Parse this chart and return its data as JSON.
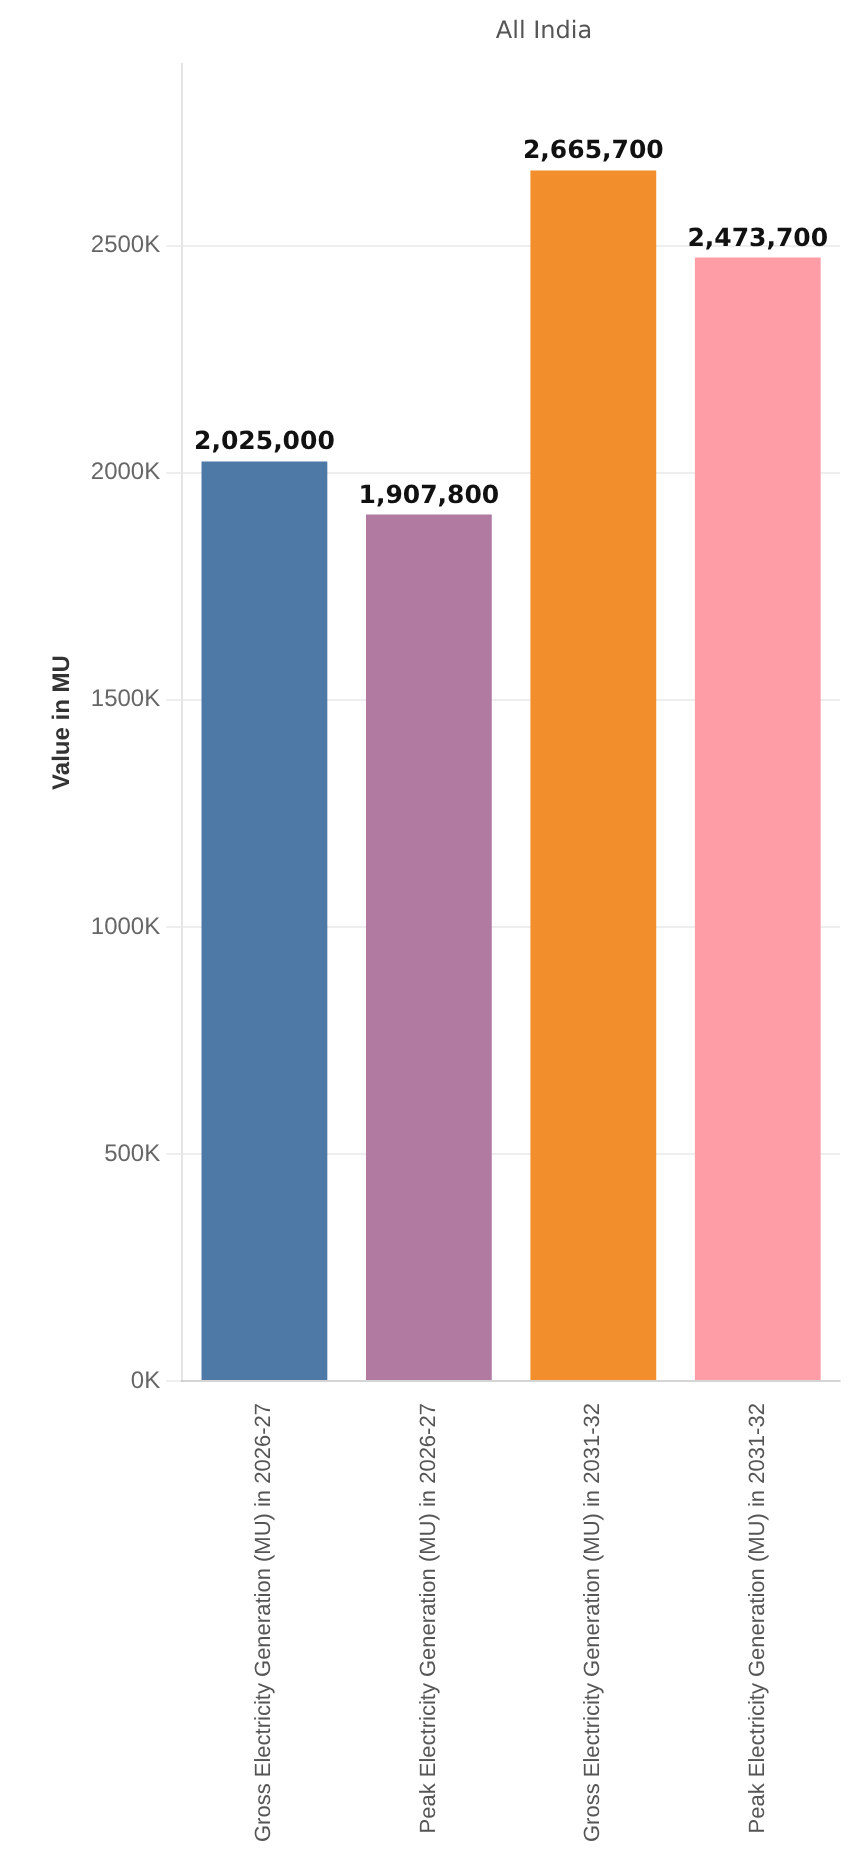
{
  "chart_data": {
    "type": "bar",
    "title": "All India",
    "ylabel": "Value in MU",
    "categories": [
      "Gross Electricity Generation (MU) in 2026-27",
      "Peak Electricity Generation (MU) in 2026-27",
      "Gross Electricity Generation (MU) in 2031-32",
      "Peak Electricity Generation (MU) in 2031-32"
    ],
    "values": [
      2025000,
      1907800,
      2665700,
      2473700
    ],
    "colors": [
      "#4e79a7",
      "#b07aa1",
      "#f28e2b",
      "#ff9da7"
    ],
    "value_labels": [
      "2,025,000",
      "1,907,800",
      "2,665,700",
      "2,473,700"
    ],
    "ylim": [
      0,
      2900000
    ],
    "yticks": [
      {
        "value": 0,
        "label": "0K"
      },
      {
        "value": 500000,
        "label": "500K"
      },
      {
        "value": 1000000,
        "label": "1000K"
      },
      {
        "value": 1500000,
        "label": "1500K"
      },
      {
        "value": 2000000,
        "label": "2000K"
      },
      {
        "value": 2500000,
        "label": "2500K"
      }
    ],
    "grid": "y",
    "legend": false
  }
}
